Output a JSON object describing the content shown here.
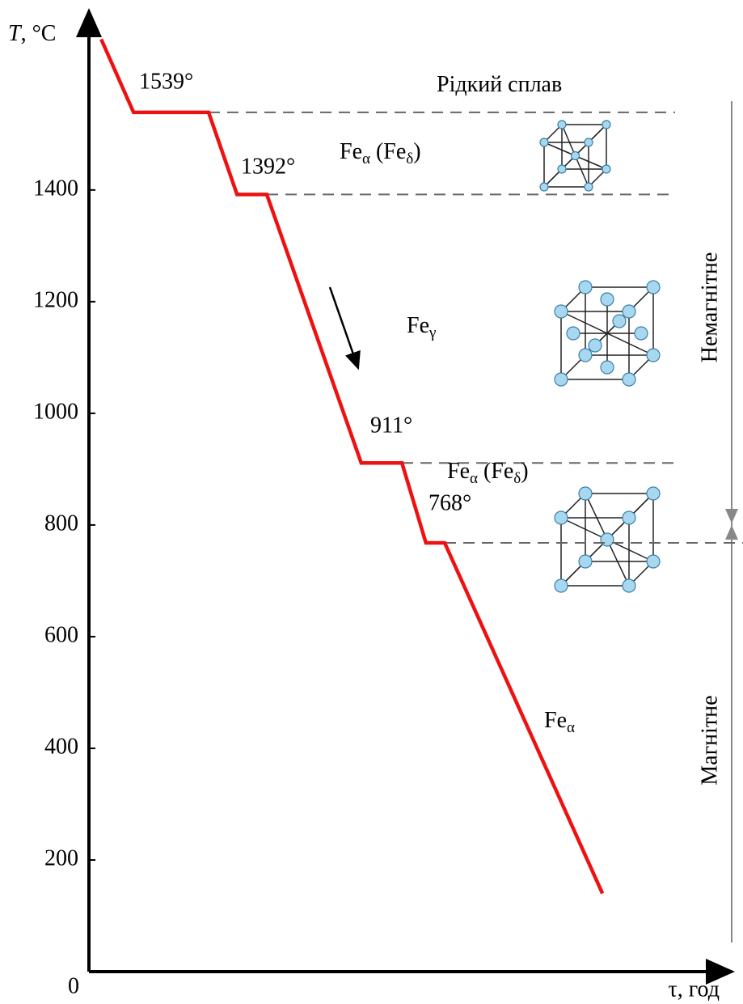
{
  "chart_data": {
    "type": "line",
    "y_label": {
      "italic": "T",
      "rest": ", °C"
    },
    "x_label": "τ, год",
    "x": [
      1.9,
      6.9,
      18.5,
      22.9,
      27.5,
      42.1,
      48.4,
      52.1,
      55,
      79.4
    ],
    "values": [
      1670,
      1539,
      1539,
      1392,
      1392,
      911,
      911,
      768,
      768,
      140
    ],
    "color": "#ee1111",
    "xlim": [
      0,
      100
    ],
    "ylim": [
      0,
      1720
    ],
    "yticks": [
      0,
      200,
      400,
      600,
      800,
      1000,
      1200,
      1400
    ],
    "plateaus": {
      "values": [
        1539,
        1392,
        911,
        768
      ],
      "value_labels": [
        "1539°",
        "1392°",
        "911°",
        "768°"
      ]
    },
    "phases": [
      {
        "parts": [
          "Рідкий сплав"
        ]
      },
      {
        "parts": [
          "Fe",
          "α",
          " (Fe",
          "δ",
          ")"
        ]
      },
      {
        "parts": [
          "Fe",
          "γ"
        ]
      },
      {
        "parts": [
          "Fe",
          "α",
          " (Fe",
          "δ",
          ")"
        ]
      },
      {
        "parts": [
          "Fe",
          "α"
        ]
      }
    ],
    "magnetic_labels": [
      "Немагнітне",
      "Магнітне"
    ]
  }
}
